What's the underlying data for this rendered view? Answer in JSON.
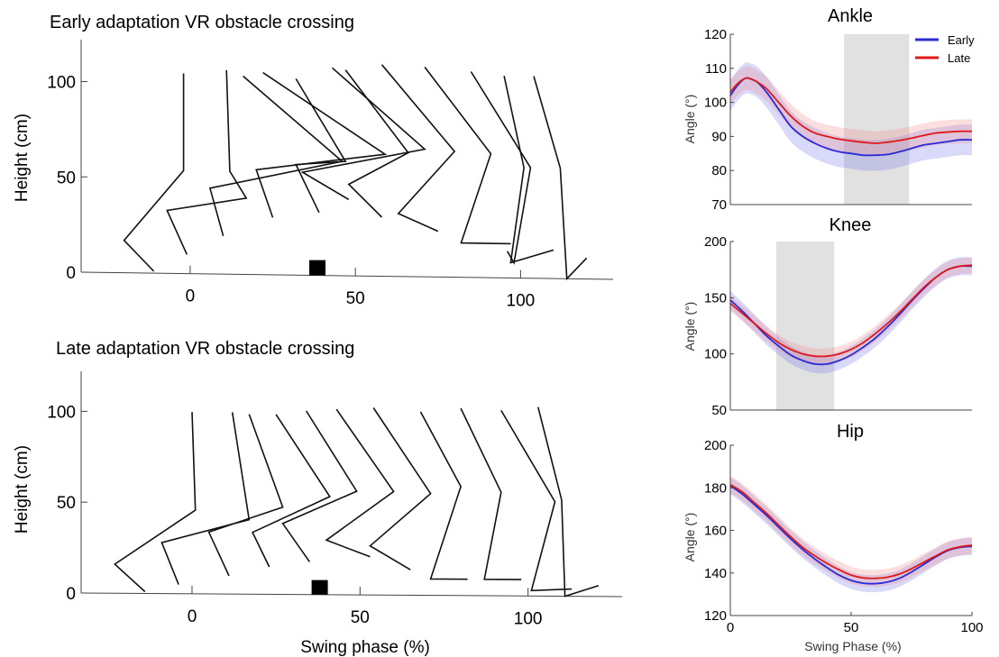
{
  "chart_data": [
    {
      "type": "stick-figure",
      "title": "Early adaptation VR obstacle crossing",
      "xlabel": "",
      "ylabel": "Height (cm)",
      "xticks": [
        "0",
        "50",
        "100"
      ],
      "yticks": [
        "0",
        "50",
        "100"
      ],
      "xlim": [
        -33,
        128
      ],
      "ylim": [
        0,
        122
      ],
      "obstacle": {
        "x": 38.5,
        "height": 8
      },
      "frames": [
        [
          [
            -11,
            1
          ],
          [
            -20,
            17
          ],
          [
            -2,
            54
          ],
          [
            -2,
            105
          ]
        ],
        [
          [
            -1,
            10
          ],
          [
            -7,
            33
          ],
          [
            17,
            40
          ],
          [
            12,
            54
          ],
          [
            11,
            107
          ]
        ],
        [
          [
            10,
            20
          ],
          [
            6,
            45
          ],
          [
            46,
            60
          ],
          [
            16,
            104
          ]
        ],
        [
          [
            25,
            30
          ],
          [
            20,
            55
          ],
          [
            59,
            64
          ],
          [
            22,
            106
          ]
        ],
        [
          [
            39,
            33
          ],
          [
            32,
            58
          ],
          [
            47,
            60
          ],
          [
            32,
            103
          ]
        ],
        [
          [
            48,
            40
          ],
          [
            34,
            54
          ],
          [
            71,
            67
          ],
          [
            43,
            109
          ]
        ],
        [
          [
            58,
            31
          ],
          [
            48,
            48
          ],
          [
            66,
            65
          ],
          [
            47,
            108
          ]
        ],
        [
          [
            75,
            24
          ],
          [
            63,
            33
          ],
          [
            80,
            66
          ],
          [
            58,
            111
          ]
        ],
        [
          [
            97,
            18
          ],
          [
            82,
            18
          ],
          [
            91,
            65
          ],
          [
            71,
            110
          ]
        ],
        [
          [
            96,
            14
          ],
          [
            98,
            8
          ],
          [
            103,
            58
          ],
          [
            85,
            108
          ]
        ],
        [
          [
            110,
            15
          ],
          [
            97,
            8
          ],
          [
            101,
            58
          ],
          [
            95,
            106
          ]
        ],
        [
          [
            120,
            11
          ],
          [
            114,
            0
          ],
          [
            112,
            58
          ],
          [
            104,
            106
          ]
        ]
      ]
    },
    {
      "type": "stick-figure",
      "title": "Late adaptation VR obstacle crossing",
      "xlabel": "Swing phase (%)",
      "ylabel": "Height (cm)",
      "xticks": [
        "0",
        "50",
        "100"
      ],
      "yticks": [
        "0",
        "50",
        "100"
      ],
      "xlim": [
        -33,
        128
      ],
      "ylim": [
        0,
        122
      ],
      "obstacle": {
        "x": 38,
        "height": 8
      },
      "frames": [
        [
          [
            -14,
            1
          ],
          [
            -23,
            16
          ],
          [
            1,
            46
          ],
          [
            0,
            100
          ]
        ],
        [
          [
            -4,
            5
          ],
          [
            -9,
            28
          ],
          [
            17,
            41
          ],
          [
            12,
            100
          ]
        ],
        [
          [
            11,
            10
          ],
          [
            5,
            34
          ],
          [
            27,
            48
          ],
          [
            17,
            99
          ]
        ],
        [
          [
            23,
            15
          ],
          [
            18,
            34
          ],
          [
            41,
            54
          ],
          [
            25,
            99
          ]
        ],
        [
          [
            35,
            18
          ],
          [
            27,
            39
          ],
          [
            49,
            57
          ],
          [
            34,
            101
          ]
        ],
        [
          [
            53,
            21
          ],
          [
            40,
            30
          ],
          [
            60,
            57
          ],
          [
            43,
            102
          ]
        ],
        [
          [
            65,
            14
          ],
          [
            53,
            27
          ],
          [
            71,
            56
          ],
          [
            54,
            103
          ]
        ],
        [
          [
            82,
            9
          ],
          [
            71,
            9
          ],
          [
            80,
            60
          ],
          [
            68,
            101
          ]
        ],
        [
          [
            98,
            9
          ],
          [
            87,
            9
          ],
          [
            92,
            57
          ],
          [
            80,
            103
          ]
        ],
        [
          [
            113,
            4
          ],
          [
            101,
            3
          ],
          [
            108,
            52
          ],
          [
            92,
            102
          ]
        ],
        [
          [
            121,
            6
          ],
          [
            111,
            0
          ],
          [
            110,
            53
          ],
          [
            103,
            104
          ]
        ]
      ]
    },
    {
      "type": "line",
      "title": "Ankle",
      "xlabel": "",
      "ylabel": "Angle (°)",
      "xlim": [
        0,
        100
      ],
      "ylim": [
        70,
        120
      ],
      "yticks": [
        70,
        80,
        90,
        100,
        110,
        120
      ],
      "shaded_region": [
        47,
        74
      ],
      "legend": {
        "position": "top-right"
      },
      "series": [
        {
          "name": "Early",
          "color": "#2a2ad6",
          "band_color": "#7777ee",
          "band_halfwidth": 4.5,
          "x": [
            0,
            3,
            6,
            8,
            11,
            15,
            20,
            25,
            30,
            35,
            40,
            45,
            50,
            55,
            60,
            65,
            70,
            75,
            80,
            85,
            90,
            95,
            100
          ],
          "y": [
            102,
            105,
            107,
            107,
            106,
            103,
            98,
            93,
            90,
            88,
            86.5,
            85.5,
            85,
            84.5,
            84.5,
            84.7,
            85.5,
            86.5,
            87.5,
            88,
            88.5,
            89,
            89
          ]
        },
        {
          "name": "Late",
          "color": "#e01818",
          "band_color": "#f08b8b",
          "band_halfwidth": 3.5,
          "x": [
            0,
            3,
            6,
            8,
            11,
            15,
            20,
            25,
            30,
            35,
            40,
            45,
            50,
            55,
            60,
            65,
            70,
            75,
            80,
            85,
            90,
            95,
            100
          ],
          "y": [
            103,
            105.5,
            107,
            107,
            106,
            104,
            100,
            96,
            93,
            91,
            90,
            89.2,
            88.7,
            88.3,
            88,
            88.3,
            88.8,
            89.5,
            90.3,
            91,
            91.3,
            91.5,
            91.5
          ]
        }
      ],
      "xticks": [],
      "xtick_labels": []
    },
    {
      "type": "line",
      "title": "Knee",
      "xlabel": "",
      "ylabel": "Angle (°)",
      "xlim": [
        0,
        100
      ],
      "ylim": [
        50,
        200
      ],
      "yticks": [
        50,
        100,
        150,
        200
      ],
      "shaded_region": [
        19,
        43
      ],
      "series": [
        {
          "name": "Early",
          "color": "#2a2ad6",
          "band_color": "#7777ee",
          "band_halfwidth": 8,
          "x": [
            0,
            5,
            10,
            15,
            20,
            25,
            30,
            35,
            40,
            45,
            50,
            55,
            60,
            65,
            70,
            75,
            80,
            85,
            90,
            95,
            100
          ],
          "y": [
            148,
            138,
            127,
            116,
            107,
            99,
            94,
            91,
            91,
            94,
            99,
            106,
            114,
            124,
            135,
            147,
            158,
            168,
            175,
            178,
            178
          ]
        },
        {
          "name": "Late",
          "color": "#e01818",
          "band_color": "#f08b8b",
          "band_halfwidth": 7,
          "x": [
            0,
            5,
            10,
            15,
            20,
            25,
            30,
            35,
            40,
            45,
            50,
            55,
            60,
            65,
            70,
            75,
            80,
            85,
            90,
            95,
            100
          ],
          "y": [
            145,
            136,
            127,
            118,
            110,
            104,
            100,
            98,
            98,
            100,
            104,
            110,
            118,
            127,
            137,
            148,
            159,
            168,
            175,
            178,
            179
          ]
        }
      ],
      "xticks": [],
      "xtick_labels": []
    },
    {
      "type": "line",
      "title": "Hip",
      "xlabel": "Swing Phase (%)",
      "ylabel": "Angle (°)",
      "xlim": [
        0,
        100
      ],
      "ylim": [
        120,
        200
      ],
      "yticks": [
        120,
        140,
        160,
        180,
        200
      ],
      "xticks": [
        0,
        50,
        100
      ],
      "series": [
        {
          "name": "Early",
          "color": "#2a2ad6",
          "band_color": "#7777ee",
          "band_halfwidth": 4,
          "x": [
            0,
            5,
            10,
            15,
            20,
            25,
            30,
            35,
            40,
            45,
            50,
            55,
            60,
            65,
            70,
            75,
            80,
            85,
            90,
            95,
            100
          ],
          "y": [
            181,
            177,
            172,
            167,
            161.5,
            156,
            151,
            146.5,
            142.5,
            139,
            136.5,
            135.2,
            135,
            135.7,
            137.5,
            140.5,
            144,
            147.5,
            150.5,
            152,
            152.5
          ]
        },
        {
          "name": "Late",
          "color": "#e01818",
          "band_color": "#f08b8b",
          "band_halfwidth": 4,
          "x": [
            0,
            5,
            10,
            15,
            20,
            25,
            30,
            35,
            40,
            45,
            50,
            55,
            60,
            65,
            70,
            75,
            80,
            85,
            90,
            95,
            100
          ],
          "y": [
            181.5,
            178,
            173,
            168,
            162.5,
            157,
            152,
            148,
            144.5,
            141.5,
            139,
            137.7,
            137.5,
            138,
            139.5,
            142,
            145,
            148,
            150.8,
            152.3,
            153
          ]
        }
      ]
    }
  ]
}
